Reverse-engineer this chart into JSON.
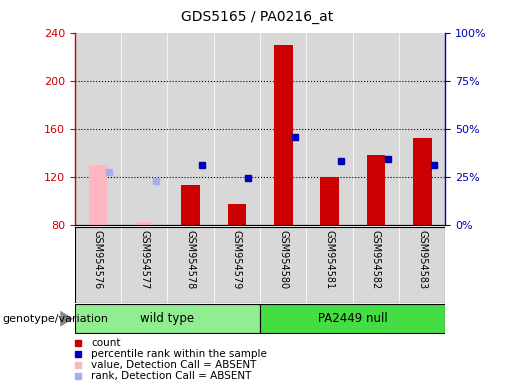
{
  "title": "GDS5165 / PA0216_at",
  "samples": [
    "GSM954576",
    "GSM954577",
    "GSM954578",
    "GSM954579",
    "GSM954580",
    "GSM954581",
    "GSM954582",
    "GSM954583"
  ],
  "count_values": [
    null,
    null,
    113,
    97,
    230,
    120,
    138,
    152
  ],
  "count_absent_values": [
    130,
    82,
    null,
    null,
    null,
    null,
    null,
    null
  ],
  "rank_values": [
    null,
    null,
    130,
    119,
    153,
    133,
    135,
    130
  ],
  "rank_absent_values": [
    124,
    116,
    null,
    null,
    null,
    null,
    null,
    null
  ],
  "ylim_left": [
    80,
    240
  ],
  "ylim_right": [
    0,
    100
  ],
  "yticks_left": [
    80,
    120,
    160,
    200,
    240
  ],
  "yticks_right": [
    0,
    25,
    50,
    75,
    100
  ],
  "yticklabels_right": [
    "0%",
    "25%",
    "50%",
    "75%",
    "100%"
  ],
  "bar_width": 0.4,
  "count_color": "#CC0000",
  "count_absent_color": "#FFB6C1",
  "rank_color": "#0000BB",
  "rank_absent_color": "#AAAAEE",
  "grid_color": "black",
  "bg_color": "#D8D8D8",
  "left_axis_color": "#CC0000",
  "right_axis_color": "#0000BB",
  "genotype_label": "genotype/variation",
  "group1_label": "wild type",
  "group2_label": "PA2449 null",
  "group1_color": "#90EE90",
  "group2_color": "#44DD44",
  "legend_items": [
    {
      "label": "count",
      "color": "#CC0000"
    },
    {
      "label": "percentile rank within the sample",
      "color": "#0000BB"
    },
    {
      "label": "value, Detection Call = ABSENT",
      "color": "#FFB6C1"
    },
    {
      "label": "rank, Detection Call = ABSENT",
      "color": "#AAAAEE"
    }
  ]
}
